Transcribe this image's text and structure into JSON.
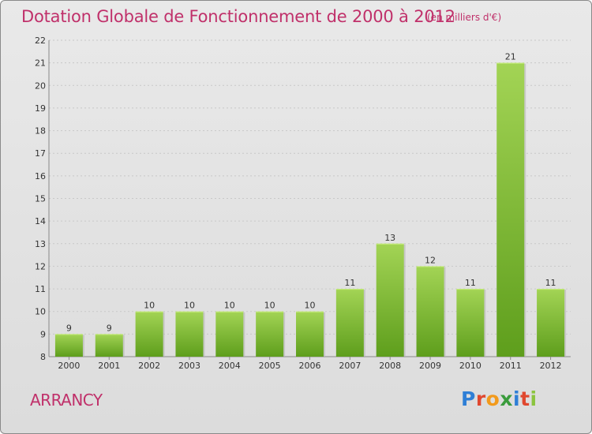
{
  "chart_data": {
    "type": "bar",
    "title": "Dotation Globale de Fonctionnement de 2000 à 2012",
    "unit_note": "(en milliers d'€)",
    "categories": [
      "2000",
      "2001",
      "2002",
      "2003",
      "2004",
      "2005",
      "2006",
      "2007",
      "2008",
      "2009",
      "2010",
      "2011",
      "2012"
    ],
    "values": [
      9,
      9,
      10,
      10,
      10,
      10,
      10,
      11,
      13,
      12,
      11,
      21,
      11
    ],
    "ylim": [
      8,
      22
    ],
    "yticks": [
      8,
      9,
      10,
      11,
      12,
      13,
      14,
      15,
      16,
      17,
      18,
      19,
      20,
      21,
      22
    ],
    "grid": true,
    "bar_color_top": "#a3d455",
    "bar_color_bottom": "#5e9e1c"
  },
  "commune": "ARRANCY",
  "logo": {
    "text": "Proxiti",
    "letters": [
      "P",
      "r",
      "o",
      "x",
      "i",
      "t",
      "i"
    ]
  }
}
